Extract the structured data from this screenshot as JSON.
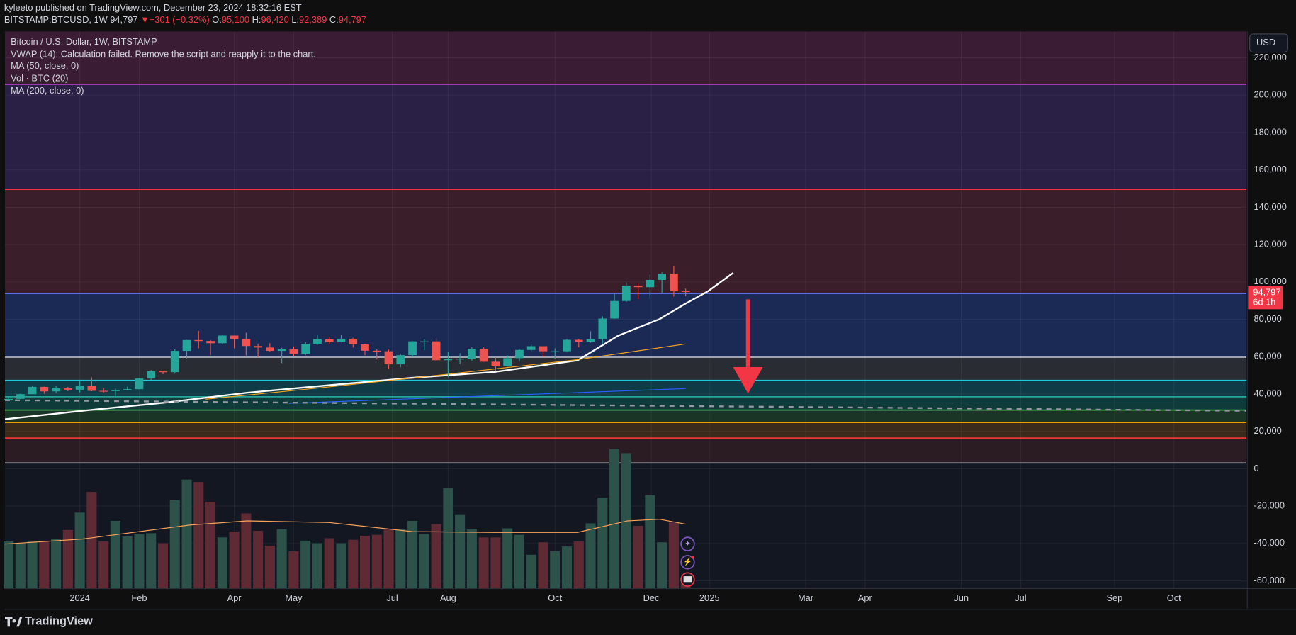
{
  "header": {
    "publisher": "kyleeto published on TradingView.com, December 23, 2024 18:32:16 EST",
    "symbol": "BITSTAMP:BTCUSD, 1W",
    "last": "94,797",
    "change_arrow": "▼",
    "change": "−301 (−0.32%)",
    "o_key": "O:",
    "o": "95,100",
    "h_key": "H:",
    "h": "96,420",
    "l_key": "L:",
    "l": "92,389",
    "c_key": "C:",
    "c": "94,797"
  },
  "legend": [
    "Bitcoin / U.S. Dollar, 1W, BITSTAMP",
    "VWAP (14): Calculation failed. Remove the script and reapply it to the chart.",
    "MA (50, close, 0)",
    "Vol · BTC (20)",
    "MA (200, close, 0)"
  ],
  "currency": "USD",
  "price_tag": {
    "price": "94,797",
    "countdown": "6d 1h"
  },
  "brand": "TradingView",
  "chart_data": {
    "type": "candlestick",
    "xlim": [
      -0.3,
      104.2
    ],
    "xticks": [
      {
        "value": 6,
        "label": "2024"
      },
      {
        "value": 11,
        "label": "Feb"
      },
      {
        "value": 19,
        "label": "Apr"
      },
      {
        "value": 24,
        "label": "May"
      },
      {
        "value": 32.3,
        "label": "Jul"
      },
      {
        "value": 37,
        "label": "Aug"
      },
      {
        "value": 46,
        "label": "Oct"
      },
      {
        "value": 54.1,
        "label": "Dec"
      },
      {
        "value": 59,
        "label": "2025"
      },
      {
        "value": 67.1,
        "label": "Mar"
      },
      {
        "value": 72.1,
        "label": "Apr"
      },
      {
        "value": 80.2,
        "label": "Jun"
      },
      {
        "value": 85.2,
        "label": "Jul"
      },
      {
        "value": 93.1,
        "label": "Sep"
      },
      {
        "value": 98.1,
        "label": "Oct"
      }
    ],
    "ylim": [
      -64200,
      234100
    ],
    "yticks": [
      {
        "value": -60000,
        "label": "-60,000"
      },
      {
        "value": -40000,
        "label": "-40,000"
      },
      {
        "value": -20000,
        "label": "-20,000"
      },
      0,
      {
        "value": 20000,
        "label": "20,000"
      },
      {
        "value": 40000,
        "label": "40,000"
      },
      {
        "value": 60000,
        "label": "60,000"
      },
      {
        "value": 80000,
        "label": "80,000"
      },
      {
        "value": 100000,
        "label": "100,000"
      },
      {
        "value": 120000,
        "label": "120,000"
      },
      {
        "value": 140000,
        "label": "140,000"
      },
      {
        "value": 160000,
        "label": "160,000"
      },
      {
        "value": 180000,
        "label": "180,000"
      },
      {
        "value": 200000,
        "label": "200,000"
      },
      {
        "value": 220000,
        "label": "220,000"
      }
    ],
    "grid": true,
    "up_color": "#26a69a",
    "down_color": "#ef5350",
    "candles": {
      "x": [
        0,
        1,
        2,
        3,
        4,
        5,
        6,
        7,
        8,
        9,
        10,
        11,
        12,
        13,
        14,
        15,
        16,
        17,
        18,
        19,
        20,
        21,
        22,
        23,
        24,
        25,
        26,
        27,
        28,
        29,
        30,
        31,
        32,
        33,
        34,
        35,
        36,
        37,
        38,
        39,
        40,
        41,
        42,
        43,
        44,
        45,
        46,
        47,
        48,
        49,
        50,
        51,
        52,
        53,
        54,
        55,
        56,
        57
      ],
      "open": [
        37400,
        37400,
        39900,
        43800,
        41400,
        43000,
        42300,
        44200,
        41700,
        41600,
        42000,
        42600,
        48300,
        52100,
        51700,
        63100,
        68900,
        68400,
        67200,
        71300,
        69400,
        65700,
        64900,
        63100,
        64000,
        61500,
        66900,
        69300,
        67700,
        69600,
        66600,
        63200,
        62900,
        55900,
        60800,
        68200,
        68200,
        58100,
        58700,
        58900,
        64200,
        57300,
        54800,
        59200,
        63600,
        65600,
        62900,
        62900,
        69000,
        68000,
        69400,
        80400,
        89800,
        98000,
        97200,
        101100,
        104500,
        95100
      ],
      "high": [
        38400,
        40200,
        44500,
        44000,
        44300,
        43800,
        47000,
        48900,
        43200,
        42900,
        43900,
        48500,
        52800,
        52500,
        64000,
        69000,
        73800,
        68900,
        71800,
        71300,
        72800,
        66900,
        67200,
        64700,
        65500,
        67700,
        71900,
        70600,
        71900,
        70100,
        66900,
        64000,
        63800,
        61400,
        68400,
        69400,
        70000,
        62700,
        61800,
        65000,
        64900,
        59800,
        60700,
        64100,
        66500,
        65600,
        64500,
        69400,
        69500,
        73600,
        81500,
        93500,
        99600,
        98900,
        103900,
        105100,
        108400,
        96420
      ],
      "low": [
        36700,
        37200,
        39900,
        40200,
        40500,
        41500,
        40800,
        41500,
        40600,
        38500,
        41900,
        42500,
        47700,
        50600,
        50900,
        59000,
        64500,
        60800,
        66600,
        64500,
        60600,
        59600,
        62800,
        56500,
        60200,
        60800,
        66300,
        66600,
        67600,
        64900,
        60800,
        58500,
        53500,
        54300,
        59800,
        63500,
        57800,
        49000,
        56100,
        57800,
        57200,
        52600,
        54600,
        57600,
        62700,
        59800,
        58900,
        62600,
        65000,
        67500,
        66800,
        80200,
        89400,
        90800,
        91000,
        94200,
        92200,
        92389
      ],
      "close": [
        37400,
        39900,
        43800,
        41400,
        43000,
        42300,
        44200,
        41700,
        41600,
        42000,
        42600,
        48300,
        52100,
        51700,
        63100,
        68900,
        68400,
        67200,
        71300,
        69400,
        65700,
        64900,
        63100,
        64000,
        61500,
        66900,
        69300,
        67700,
        69600,
        66600,
        63200,
        62900,
        55900,
        60800,
        68200,
        68200,
        58100,
        58700,
        58900,
        64200,
        57300,
        54800,
        59200,
        63600,
        65600,
        62900,
        62900,
        69000,
        68000,
        69400,
        80400,
        89800,
        98000,
        97200,
        101100,
        104500,
        95100,
        94797
      ]
    },
    "volume": {
      "ylim": [
        0,
        12000
      ],
      "up_color": "#2c5249",
      "down_color": "#5e2b35",
      "values": [
        4050,
        3900,
        4050,
        4120,
        4260,
        5040,
        6530,
        8310,
        4050,
        5820,
        4540,
        4690,
        4760,
        3900,
        7600,
        9370,
        9160,
        7460,
        4400,
        4900,
        6460,
        4970,
        3690,
        5110,
        3200,
        4120,
        3900,
        4330,
        3900,
        4190,
        4540,
        4620,
        5110,
        5110,
        5820,
        4690,
        5540,
        8660,
        6390,
        5110,
        4400,
        4400,
        5180,
        4620,
        2910,
        3980,
        3200,
        3620,
        4050,
        5610,
        7810,
        12000,
        11640,
        5400,
        8020,
        3980,
        5680,
        500
      ],
      "ma": {
        "color": "#f7a35c",
        "x": [
          -0.3,
          6.2,
          15.3,
          20.1,
          27.0,
          34.0,
          40.9,
          47.9,
          52.1,
          54.8,
          57.0
        ],
        "values": [
          3830,
          4260,
          5470,
          5820,
          5680,
          4900,
          4830,
          4830,
          5820,
          5960,
          5540
        ]
      }
    },
    "lines": [
      {
        "color": "#ffffff",
        "width": 2,
        "x": [
          -0.3,
          6.2,
          13.2,
          20.1,
          27.0,
          34.0,
          40.9,
          47.9,
          51.3,
          54.8,
          56.9,
          58.9,
          61.0
        ],
        "values": [
          26500,
          31000,
          35400,
          40700,
          44700,
          48700,
          51800,
          58000,
          71200,
          80100,
          88100,
          95100,
          104900
        ]
      },
      {
        "color": "#f5a623",
        "width": 1,
        "x": [
          16.6,
          27.0,
          37.4,
          47.9,
          57.0
        ],
        "values": [
          37200,
          43800,
          50900,
          58400,
          66800
        ]
      },
      {
        "color": "#2962ff",
        "width": 1,
        "x": [
          23.6,
          57.0
        ],
        "values": [
          35000,
          42900
        ]
      },
      {
        "color": "#9598a1",
        "width": 2,
        "dash": true,
        "x": [
          -0.3,
          104.2
        ],
        "values": [
          36700,
          31000
        ]
      }
    ],
    "levels": [
      {
        "value": 205800,
        "color": "#b03fc4",
        "band": "#3a1d34"
      },
      {
        "value": 149600,
        "color": "#f23645",
        "band": "#2a1f45"
      },
      {
        "value": 93800,
        "color": "#5b6ee8",
        "band": "#3a1f2b"
      },
      {
        "value": 59700,
        "color": "#b2b5be",
        "band": "#1a2a55"
      },
      {
        "value": 47300,
        "color": "#26c6da",
        "band": "#2a2c33"
      },
      {
        "value": 38500,
        "color": "#26a69a",
        "band": "#0f3b46"
      },
      {
        "value": 31400,
        "color": "#4caf50",
        "band": "#103b3b"
      },
      {
        "value": 24800,
        "color": "#ffb300",
        "band": "#1a3526"
      },
      {
        "value": 16400,
        "color": "#e53935",
        "band": "#3a2b1c"
      },
      {
        "value": 3100,
        "color": "#9598a1",
        "band": "#2b1b22"
      }
    ]
  }
}
